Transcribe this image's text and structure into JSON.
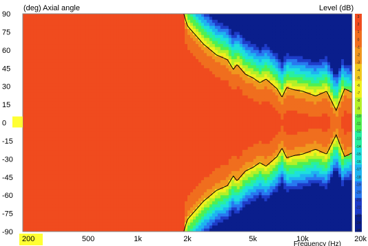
{
  "chart_data": {
    "type": "heatmap",
    "title": "",
    "ylabel": "(deg) Axial angle",
    "xlabel": "Frequency (Hz)",
    "colorbar_label": "Level (dB)",
    "x_scale": "log",
    "xlim": [
      200,
      20000
    ],
    "ylim": [
      -90,
      90
    ],
    "x_ticks": [
      {
        "label": "200",
        "value": 200,
        "highlight": true
      },
      {
        "label": "500",
        "value": 500
      },
      {
        "label": "1k",
        "value": 1000
      },
      {
        "label": "2k",
        "value": 2000
      },
      {
        "label": "5k",
        "value": 5000
      },
      {
        "label": "10k",
        "value": 10000
      },
      {
        "label": "20k",
        "value": 20000
      }
    ],
    "y_ticks": [
      {
        "label": "90",
        "value": 90
      },
      {
        "label": "75",
        "value": 75
      },
      {
        "label": "60",
        "value": 60
      },
      {
        "label": "45",
        "value": 45
      },
      {
        "label": "30",
        "value": 30
      },
      {
        "label": "15",
        "value": 15
      },
      {
        "label": "0",
        "value": 0,
        "highlight": true
      },
      {
        "label": "-15",
        "value": -15
      },
      {
        "label": "-30",
        "value": -30
      },
      {
        "label": "-45",
        "value": -45
      },
      {
        "label": "-60",
        "value": -60
      },
      {
        "label": "-75",
        "value": -75
      },
      {
        "label": "-90",
        "value": -90
      }
    ],
    "colormap": [
      "#0a1e8c",
      "#1e3cc8",
      "#2878f0",
      "#1eb4f0",
      "#1ee0dc",
      "#28f0a0",
      "#50f050",
      "#b4f028",
      "#f0f01e",
      "#f0c81e",
      "#f0961e",
      "#f06e1e",
      "#f04b1e"
    ],
    "contour_boundary_deg": {
      "freq": [
        1900,
        2000,
        2500,
        3000,
        3500,
        3800,
        4000,
        4500,
        5000,
        5500,
        6000,
        7000,
        7500,
        8000,
        9000,
        10000,
        12000,
        14000,
        16000,
        18000,
        20000
      ],
      "angle": [
        90,
        80,
        65,
        56,
        52,
        44,
        48,
        40,
        37,
        33,
        36,
        28,
        21,
        29,
        27,
        26,
        22,
        26,
        10,
        28,
        25
      ]
    },
    "colorbar_ticks": [
      "3",
      "2",
      "1",
      "0",
      "-1",
      "-2",
      "-3",
      "-4",
      "-5",
      "-6",
      "-7",
      "-8",
      "-9",
      "-10",
      "-11",
      "-12",
      "-13",
      "-14",
      "-15",
      "-16",
      "-17",
      "-18",
      "-19",
      "-20",
      "-21",
      "-22",
      "-23",
      "-24",
      "-25"
    ]
  }
}
